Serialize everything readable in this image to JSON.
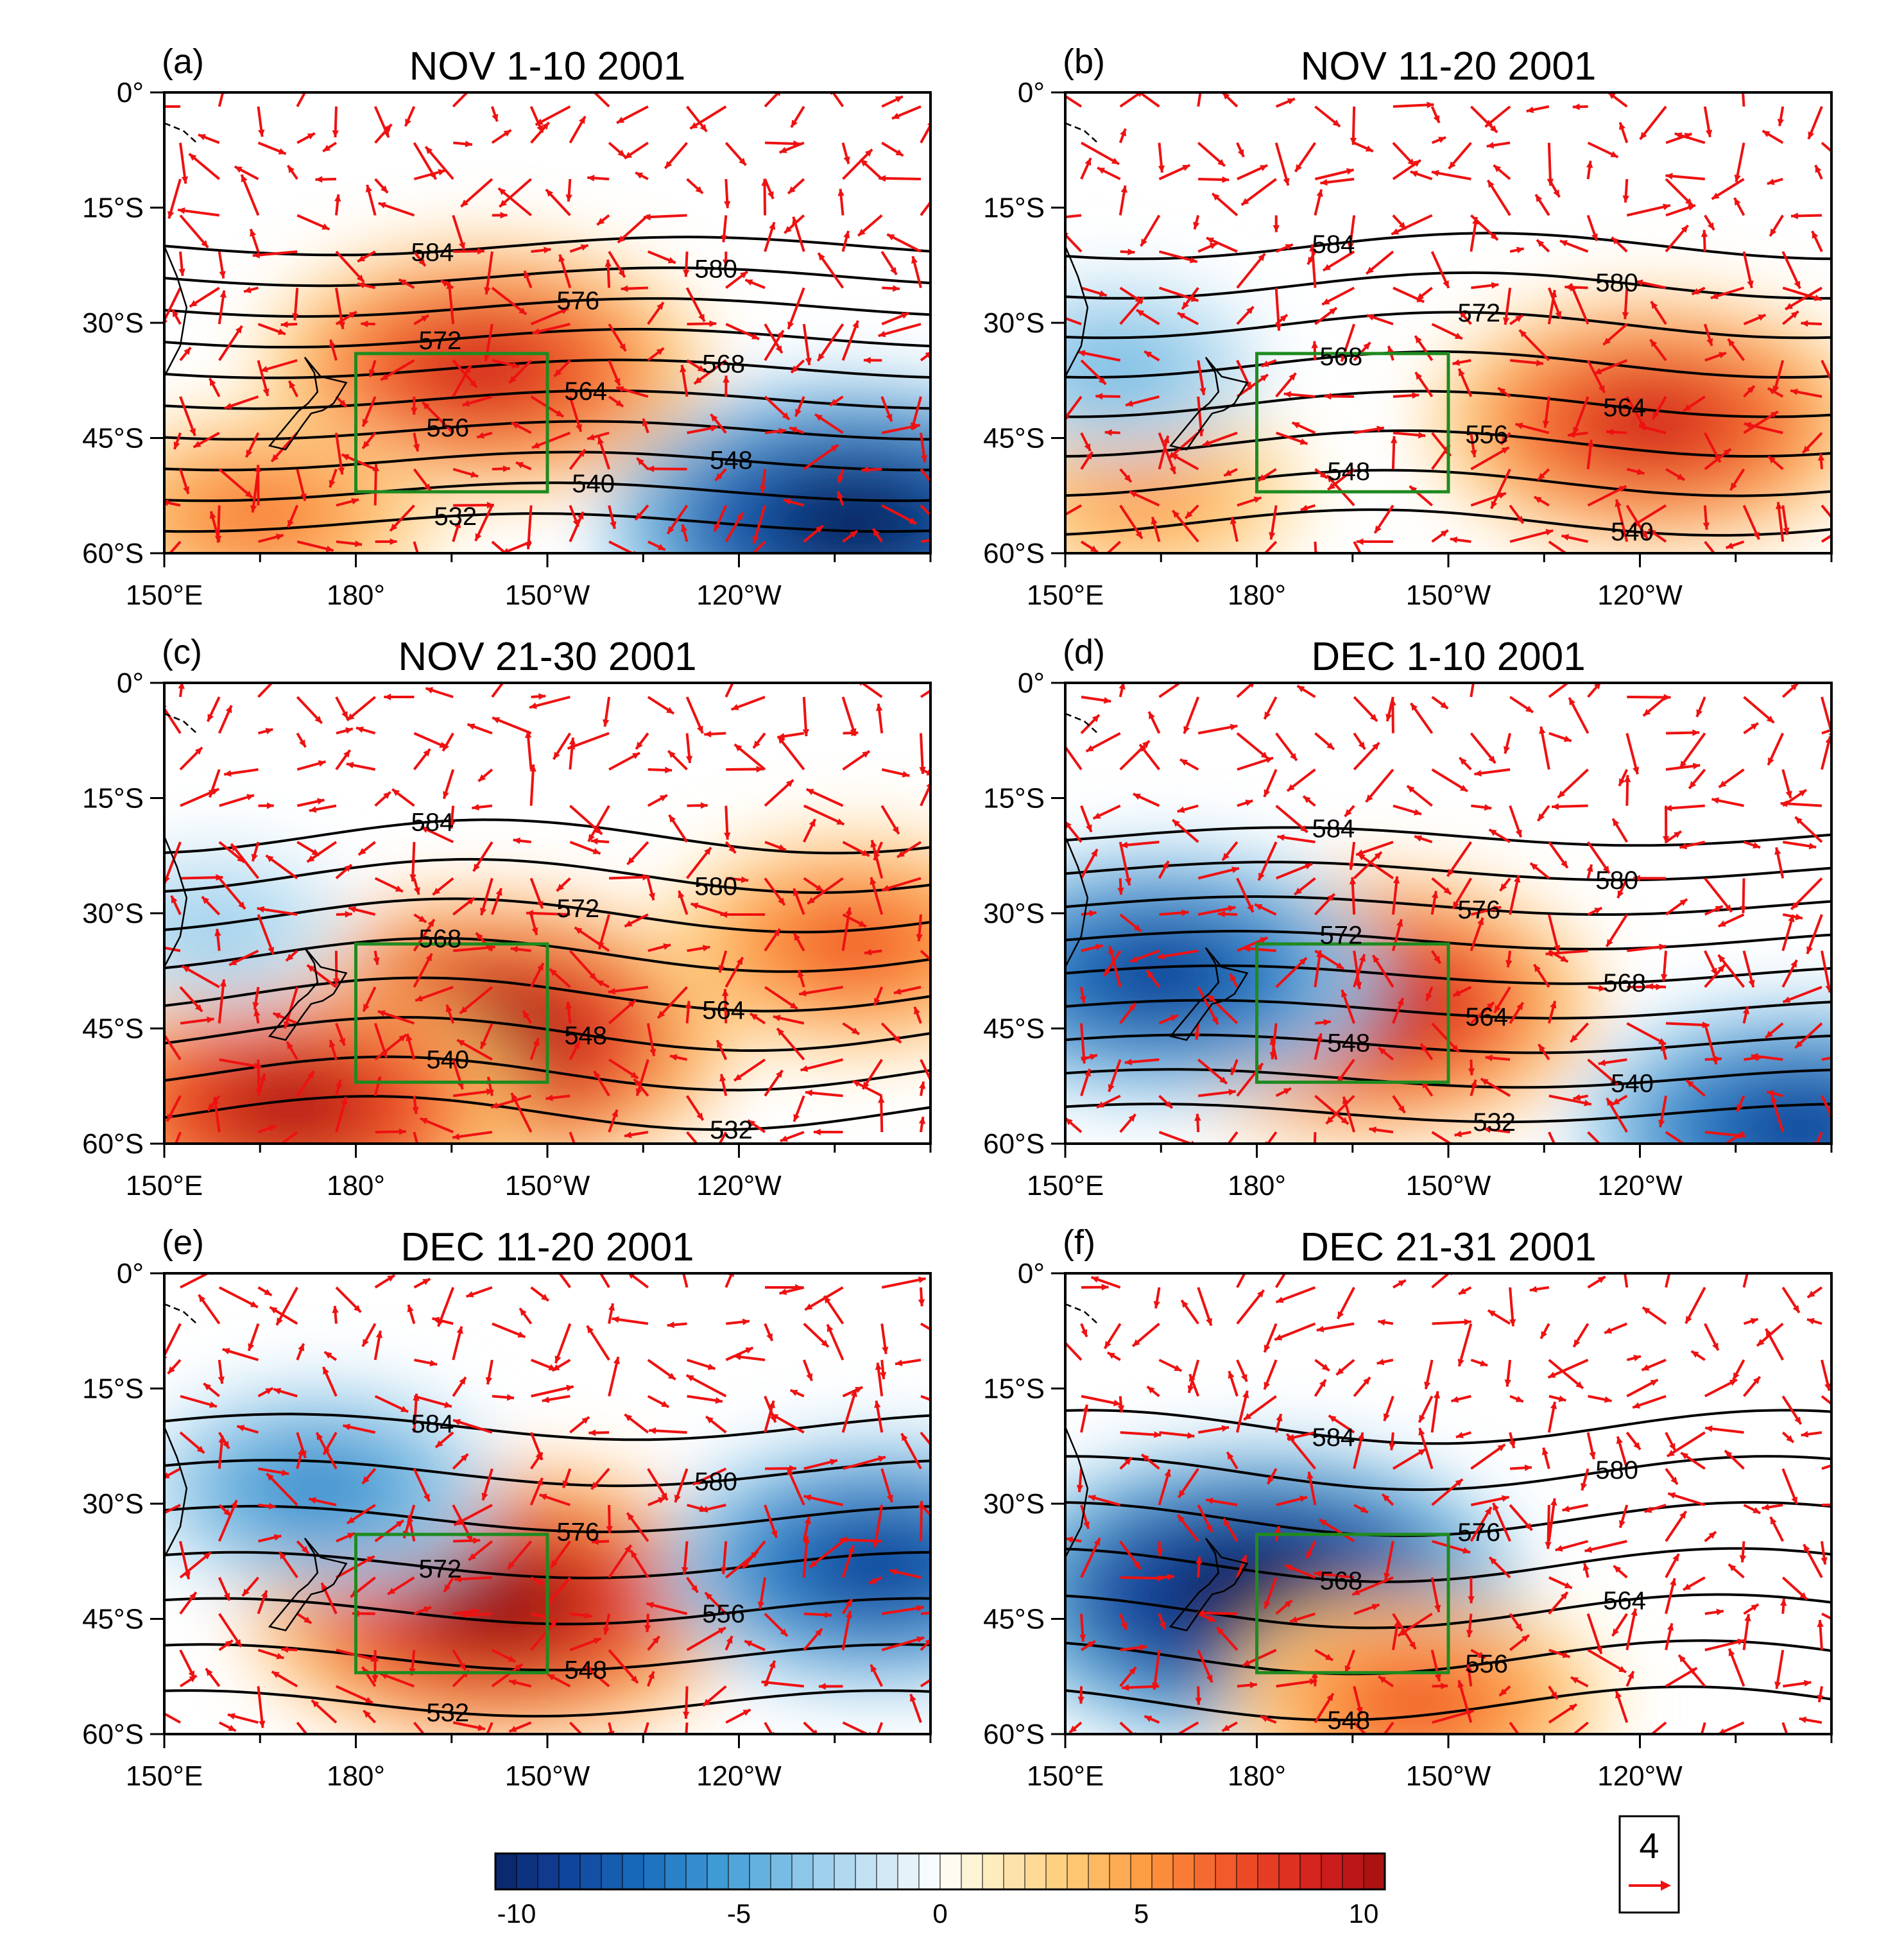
{
  "chart_data": [
    {
      "type": "contour+vector map",
      "panel": "(a)",
      "title": "NOV 1-10 2001",
      "xlim": [
        150,
        270
      ],
      "ylim": [
        -60,
        0
      ],
      "xticks": [
        "150°E",
        "180°",
        "150°W",
        "120°W"
      ],
      "yticks": [
        "0°",
        "15°S",
        "30°S",
        "45°S",
        "60°S"
      ],
      "contours": [
        584,
        580,
        576,
        572,
        568,
        564,
        556,
        548,
        540,
        532
      ],
      "anomalies": [
        {
          "sign": "positive",
          "center_lon": 200,
          "center_lat": -36,
          "peak": 9
        },
        {
          "sign": "positive",
          "center_lon": 165,
          "center_lat": -55,
          "peak": 6
        },
        {
          "sign": "negative",
          "center_lon": 258,
          "center_lat": -56,
          "peak": -11
        }
      ],
      "box": {
        "lon": [
          180,
          210
        ],
        "lat": [
          -52,
          -34
        ]
      }
    },
    {
      "type": "contour+vector map",
      "panel": "(b)",
      "title": "NOV 11-20 2001",
      "xlim": [
        150,
        270
      ],
      "ylim": [
        -60,
        0
      ],
      "xticks": [
        "150°E",
        "180°",
        "150°W",
        "120°W"
      ],
      "yticks": [
        "0°",
        "15°S",
        "30°S",
        "45°S",
        "60°S"
      ],
      "contours": [
        584,
        580,
        572,
        568,
        564,
        556,
        548,
        540
      ],
      "anomalies": [
        {
          "sign": "positive",
          "center_lon": 242,
          "center_lat": -43,
          "peak": 9
        },
        {
          "sign": "positive",
          "center_lon": 162,
          "center_lat": -52,
          "peak": 5
        },
        {
          "sign": "negative",
          "center_lon": 158,
          "center_lat": -36,
          "peak": -4
        }
      ],
      "box": {
        "lon": [
          180,
          210
        ],
        "lat": [
          -52,
          -34
        ]
      }
    },
    {
      "type": "contour+vector map",
      "panel": "(c)",
      "title": "NOV 21-30 2001",
      "xlim": [
        150,
        270
      ],
      "ylim": [
        -60,
        0
      ],
      "xticks": [
        "150°E",
        "180°",
        "150°W",
        "120°W"
      ],
      "yticks": [
        "0°",
        "15°S",
        "30°S",
        "45°S",
        "60°S"
      ],
      "contours": [
        584,
        580,
        572,
        568,
        564,
        548,
        540,
        532
      ],
      "anomalies": [
        {
          "sign": "positive",
          "center_lon": 200,
          "center_lat": -46,
          "peak": 11
        },
        {
          "sign": "positive",
          "center_lon": 170,
          "center_lat": -55,
          "peak": 10
        },
        {
          "sign": "positive",
          "center_lon": 258,
          "center_lat": -34,
          "peak": 7
        },
        {
          "sign": "negative",
          "center_lon": 158,
          "center_lat": -32,
          "peak": -3
        }
      ],
      "box": {
        "lon": [
          180,
          210
        ],
        "lat": [
          -52,
          -34
        ]
      }
    },
    {
      "type": "contour+vector map",
      "panel": "(d)",
      "title": "DEC 1-10 2001",
      "xlim": [
        150,
        270
      ],
      "ylim": [
        -60,
        0
      ],
      "xticks": [
        "150°E",
        "180°",
        "150°W",
        "120°W"
      ],
      "yticks": [
        "0°",
        "15°S",
        "30°S",
        "45°S",
        "60°S"
      ],
      "contours": [
        584,
        580,
        576,
        572,
        568,
        564,
        548,
        540,
        532
      ],
      "anomalies": [
        {
          "sign": "positive",
          "center_lon": 196,
          "center_lat": -42,
          "peak": 10
        },
        {
          "sign": "negative",
          "center_lon": 165,
          "center_lat": -38,
          "peak": -9
        },
        {
          "sign": "negative",
          "center_lon": 265,
          "center_lat": -58,
          "peak": -9
        }
      ],
      "box": {
        "lon": [
          180,
          210
        ],
        "lat": [
          -52,
          -34
        ]
      }
    },
    {
      "type": "contour+vector map",
      "panel": "(e)",
      "title": "DEC 11-20 2001",
      "xlim": [
        150,
        270
      ],
      "ylim": [
        -60,
        0
      ],
      "xticks": [
        "150°E",
        "180°",
        "150°W",
        "120°W"
      ],
      "yticks": [
        "0°",
        "15°S",
        "30°S",
        "45°S",
        "60°S"
      ],
      "contours": [
        584,
        580,
        576,
        572,
        556,
        548,
        532
      ],
      "anomalies": [
        {
          "sign": "positive",
          "center_lon": 202,
          "center_lat": -43,
          "peak": 11
        },
        {
          "sign": "negative",
          "center_lon": 174,
          "center_lat": -28,
          "peak": -6
        },
        {
          "sign": "negative",
          "center_lon": 262,
          "center_lat": -38,
          "peak": -9
        }
      ],
      "box": {
        "lon": [
          180,
          210
        ],
        "lat": [
          -52,
          -34
        ]
      }
    },
    {
      "type": "contour+vector map",
      "panel": "(f)",
      "title": "DEC 21-31 2001",
      "xlim": [
        150,
        270
      ],
      "ylim": [
        -60,
        0
      ],
      "xticks": [
        "150°E",
        "180°",
        "150°W",
        "120°W"
      ],
      "yticks": [
        "0°",
        "15°S",
        "30°S",
        "45°S",
        "60°S"
      ],
      "contours": [
        584,
        580,
        576,
        568,
        564,
        556,
        548
      ],
      "anomalies": [
        {
          "sign": "negative",
          "center_lon": 180,
          "center_lat": -42,
          "peak": -12
        },
        {
          "sign": "positive",
          "center_lon": 205,
          "center_lat": -56,
          "peak": 7
        }
      ],
      "box": {
        "lon": [
          180,
          210
        ],
        "lat": [
          -52,
          -34
        ]
      }
    }
  ],
  "colorbar": {
    "range": [
      -10,
      10
    ],
    "ticks": [
      "-10",
      "-5",
      "0",
      "5",
      "10"
    ]
  },
  "reference_vector": {
    "value": "4"
  },
  "colors": {
    "vector": "#ee1111",
    "box": "#1f8a1f",
    "contour": "#000000"
  }
}
